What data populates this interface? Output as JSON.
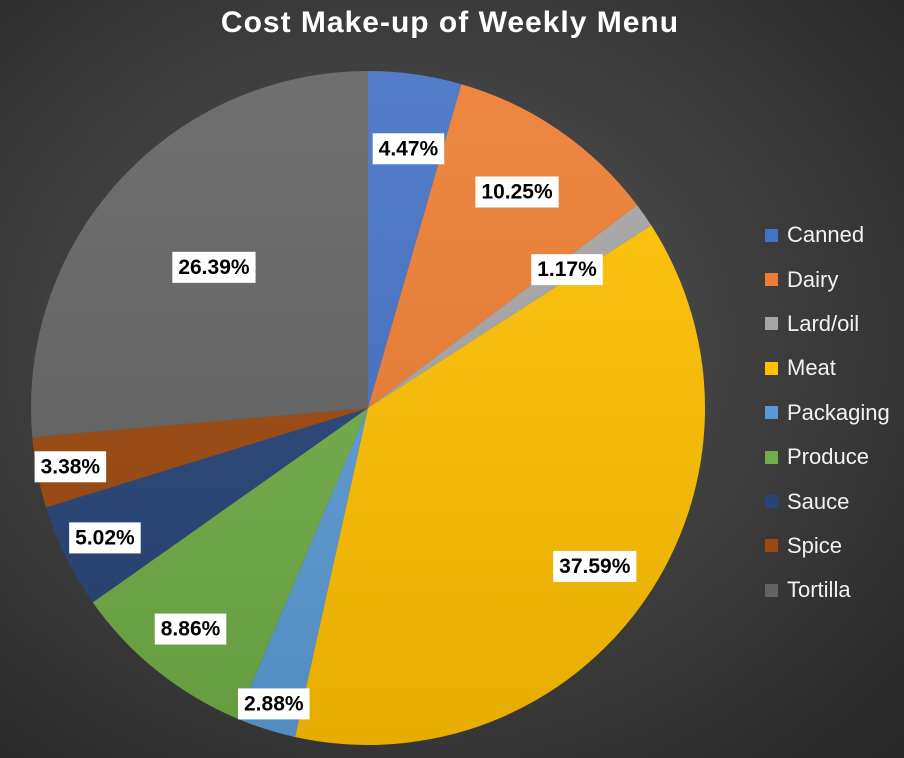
{
  "chart_data": {
    "type": "pie",
    "title": "Cost Make-up of Weekly Menu",
    "legend_position": "right",
    "slices": [
      {
        "label": "Canned",
        "value": 4.47,
        "display": "4.47%",
        "color": "#4472c4"
      },
      {
        "label": "Dairy",
        "value": 10.25,
        "display": "10.25%",
        "color": "#ed7d31"
      },
      {
        "label": "Lard/oil",
        "value": 1.17,
        "display": "1.17%",
        "color": "#a5a5a5"
      },
      {
        "label": "Meat",
        "value": 37.59,
        "display": "37.59%",
        "color": "#ffc000"
      },
      {
        "label": "Packaging",
        "value": 2.88,
        "display": "2.88%",
        "color": "#5b9bd5"
      },
      {
        "label": "Produce",
        "value": 8.86,
        "display": "8.86%",
        "color": "#70ad47"
      },
      {
        "label": "Sauce",
        "value": 5.02,
        "display": "5.02%",
        "color": "#264478"
      },
      {
        "label": "Spice",
        "value": 3.38,
        "display": "3.38%",
        "color": "#9e480e"
      },
      {
        "label": "Tortilla",
        "value": 26.39,
        "display": "26.39%",
        "color": "#636363"
      }
    ]
  }
}
